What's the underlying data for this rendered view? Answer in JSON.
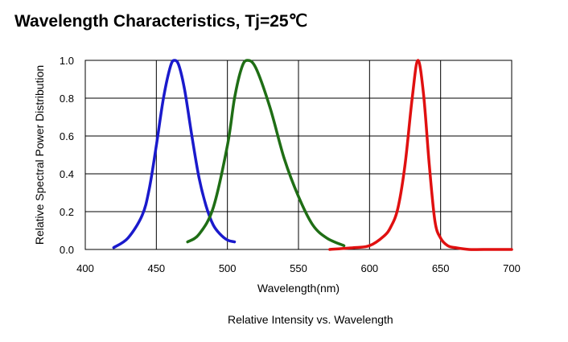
{
  "title": "Wavelength Characteristics, Tj=25℃",
  "caption": "Relative Intensity vs. Wavelength",
  "chart_data": {
    "type": "line",
    "xlabel": "Wavelength(nm)",
    "ylabel": "Relative Spectral Power Distribution",
    "xlim": [
      400,
      700
    ],
    "ylim": [
      0.0,
      1.0
    ],
    "x_ticks": [
      "400",
      "450",
      "500",
      "550",
      "600",
      "650",
      "700"
    ],
    "y_ticks": [
      "0.0",
      "0.2",
      "0.4",
      "0.6",
      "0.8",
      "1.0"
    ],
    "grid": true,
    "series": [
      {
        "color": "#1a1acc",
        "x": [
          420,
          430,
          440,
          445,
          450,
          455,
          460,
          463,
          466,
          470,
          475,
          480,
          485,
          490,
          495,
          500,
          505
        ],
        "y": [
          0.01,
          0.06,
          0.18,
          0.32,
          0.55,
          0.8,
          0.97,
          1.0,
          0.97,
          0.84,
          0.6,
          0.38,
          0.23,
          0.13,
          0.08,
          0.05,
          0.04
        ]
      },
      {
        "color": "#1f6e15",
        "x": [
          472,
          480,
          490,
          500,
          505,
          510,
          514,
          520,
          530,
          540,
          550,
          560,
          570,
          582
        ],
        "y": [
          0.04,
          0.08,
          0.22,
          0.55,
          0.8,
          0.96,
          1.0,
          0.96,
          0.75,
          0.48,
          0.28,
          0.13,
          0.06,
          0.02
        ]
      },
      {
        "color": "#e01010",
        "x": [
          572,
          590,
          600,
          610,
          615,
          620,
          625,
          630,
          634,
          638,
          642,
          646,
          650,
          655,
          660,
          670,
          680,
          700
        ],
        "y": [
          0.0,
          0.01,
          0.02,
          0.07,
          0.12,
          0.22,
          0.45,
          0.8,
          1.0,
          0.82,
          0.45,
          0.15,
          0.06,
          0.02,
          0.01,
          0.0,
          0.0,
          0.0
        ]
      }
    ]
  }
}
